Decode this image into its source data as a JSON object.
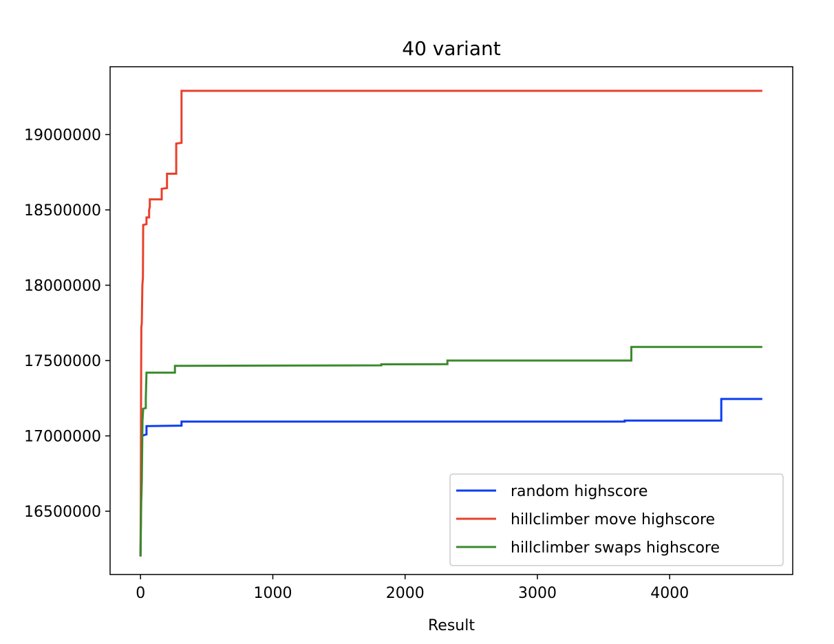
{
  "chart_data": {
    "type": "line",
    "title": "40 variant",
    "xlabel": "Result",
    "ylabel": "",
    "xlim": [
      -230,
      4930
    ],
    "ylim": [
      16080000,
      19450000
    ],
    "xticks": [
      0,
      1000,
      2000,
      3000,
      4000
    ],
    "yticks": [
      16500000,
      17000000,
      17500000,
      18000000,
      18500000,
      19000000
    ],
    "grid": false,
    "legend_position": "lower-right",
    "series": [
      {
        "name": "random highscore",
        "color": "#0a3cf0",
        "points": [
          [
            0,
            16200000
          ],
          [
            3,
            16500000
          ],
          [
            6,
            16700000
          ],
          [
            10,
            17000000
          ],
          [
            45,
            17010000
          ],
          [
            45,
            17065000
          ],
          [
            310,
            17068000
          ],
          [
            310,
            17095000
          ],
          [
            3660,
            17095000
          ],
          [
            3660,
            17102000
          ],
          [
            4390,
            17102000
          ],
          [
            4390,
            17245000
          ],
          [
            4700,
            17245000
          ]
        ]
      },
      {
        "name": "hillclimber move highscore",
        "color": "#e8402a",
        "points": [
          [
            0,
            16200000
          ],
          [
            2,
            16550000
          ],
          [
            4,
            17300000
          ],
          [
            6,
            17720000
          ],
          [
            10,
            17750000
          ],
          [
            14,
            18000000
          ],
          [
            18,
            18050000
          ],
          [
            20,
            18400000
          ],
          [
            45,
            18405000
          ],
          [
            45,
            18450000
          ],
          [
            65,
            18450000
          ],
          [
            65,
            18500000
          ],
          [
            70,
            18520000
          ],
          [
            70,
            18570000
          ],
          [
            160,
            18570000
          ],
          [
            160,
            18640000
          ],
          [
            200,
            18645000
          ],
          [
            200,
            18740000
          ],
          [
            270,
            18740000
          ],
          [
            270,
            18940000
          ],
          [
            310,
            18945000
          ],
          [
            310,
            19290000
          ],
          [
            4700,
            19290000
          ]
        ]
      },
      {
        "name": "hillclimber swaps highscore",
        "color": "#3a8a2c",
        "points": [
          [
            0,
            16200000
          ],
          [
            5,
            16550000
          ],
          [
            10,
            16700000
          ],
          [
            15,
            17100000
          ],
          [
            20,
            17180000
          ],
          [
            40,
            17185000
          ],
          [
            40,
            17250000
          ],
          [
            45,
            17420000
          ],
          [
            260,
            17420000
          ],
          [
            260,
            17465000
          ],
          [
            1820,
            17468000
          ],
          [
            1820,
            17475000
          ],
          [
            2320,
            17476000
          ],
          [
            2320,
            17500000
          ],
          [
            3710,
            17500000
          ],
          [
            3710,
            17590000
          ],
          [
            4700,
            17590000
          ]
        ]
      }
    ]
  }
}
